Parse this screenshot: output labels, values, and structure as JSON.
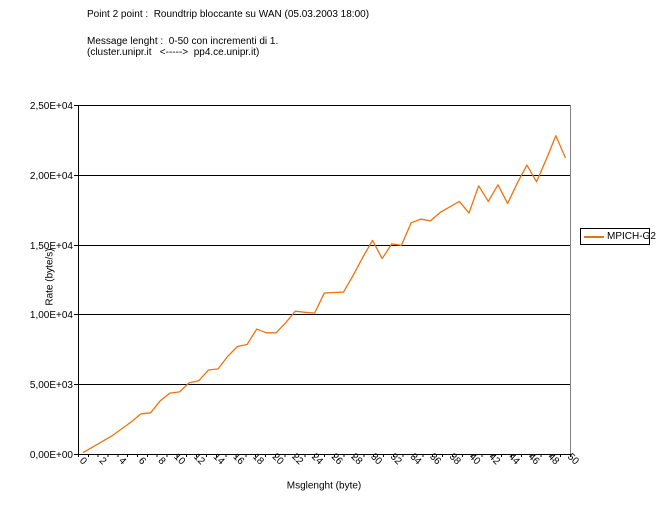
{
  "header": {
    "line1": "Point 2 point :  Roundtrip bloccante su WAN (05.03.2003 18:00)",
    "line2": "Message lenght :  0-50 con incrementi di 1.",
    "line3": "(cluster.unipr.it   <----->  pp4.ce.unipr.it)"
  },
  "legend": {
    "entries": [
      {
        "label": "MPICH-G2",
        "color": "#ee7310"
      }
    ]
  },
  "chart_data": {
    "type": "line",
    "title": "Point 2 point :  Roundtrip bloccante su WAN (05.03.2003 18:00)",
    "subtitle": "Message lenght :  0-50 con incrementi di 1. (cluster.unipr.it <-----> pp4.ce.unipr.it)",
    "xlabel": "Msglenght (byte)",
    "ylabel": "Rate (byte/s)",
    "ylim": [
      0,
      25000
    ],
    "grid": "horizontal",
    "legend_position": "right",
    "x_label_every": 2,
    "categories": [
      0,
      1,
      2,
      3,
      4,
      5,
      6,
      7,
      8,
      9,
      10,
      11,
      12,
      13,
      14,
      15,
      16,
      17,
      18,
      19,
      20,
      21,
      22,
      23,
      24,
      25,
      26,
      27,
      28,
      29,
      30,
      31,
      32,
      33,
      34,
      35,
      36,
      37,
      38,
      39,
      40,
      41,
      42,
      43,
      44,
      45,
      46,
      47,
      48,
      49,
      50
    ],
    "y_ticks": [
      {
        "value": 0,
        "label": "0,00E+00"
      },
      {
        "value": 5000,
        "label": "5,00E+03"
      },
      {
        "value": 10000,
        "label": "1,00E+04"
      },
      {
        "value": 15000,
        "label": "1,50E+04"
      },
      {
        "value": 20000,
        "label": "2,00E+04"
      },
      {
        "value": 25000,
        "label": "2,50E+04"
      }
    ],
    "series": [
      {
        "name": "MPICH-G2",
        "color": "#ee7310",
        "values": [
          100,
          500,
          900,
          1300,
          1800,
          2300,
          2870,
          2950,
          3810,
          4360,
          4450,
          5100,
          5250,
          6020,
          6100,
          7000,
          7700,
          7840,
          8950,
          8680,
          8680,
          9400,
          10230,
          10150,
          10090,
          11530,
          11570,
          11600,
          12800,
          14100,
          15300,
          14000,
          15050,
          14950,
          16560,
          16830,
          16700,
          17300,
          17700,
          18090,
          17260,
          19210,
          18090,
          19280,
          17950,
          19400,
          20700,
          19500,
          21100,
          22800,
          21200
        ]
      }
    ]
  }
}
